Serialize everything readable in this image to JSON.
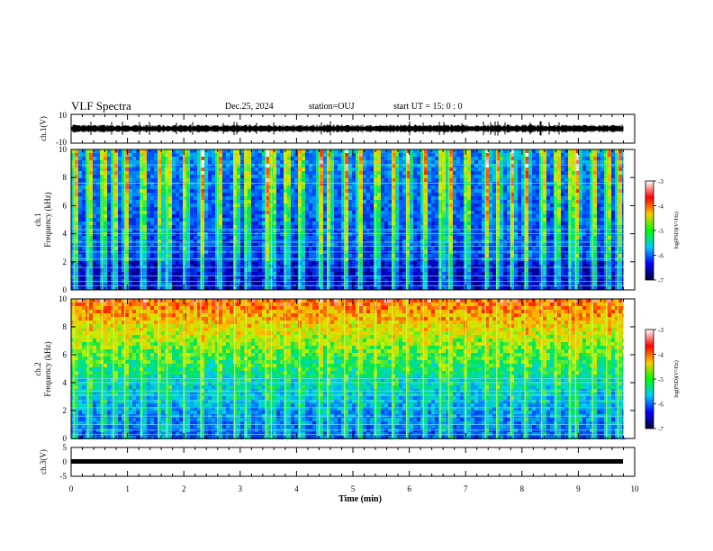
{
  "header": {
    "title": "VLF Spectra",
    "date": "Dec.25, 2024",
    "station": "station=OUJ",
    "start": "start  UT =   15: 0  : 0"
  },
  "panels": {
    "ch1_wave": {
      "ylabel": "ch.1(V)",
      "ylim": [
        -10,
        10
      ],
      "ticks": [
        "10",
        "-10"
      ]
    },
    "ch1_spec": {
      "ylabel_line1": "ch.1",
      "ylabel_line2": "Frequency (kHz)",
      "ticks": [
        "10",
        "8",
        "6",
        "4",
        "2",
        "0"
      ]
    },
    "ch2_spec": {
      "ylabel_line1": "ch.2",
      "ylabel_line2": "Frequency (kHz)",
      "ticks": [
        "10",
        "8",
        "6",
        "4",
        "2",
        "0"
      ]
    },
    "ch3_wave": {
      "ylabel": "ch.3(V)",
      "ylim": [
        -5,
        5
      ],
      "ticks": [
        "5",
        "0",
        "-5"
      ]
    }
  },
  "colorbar": {
    "label": "log(PSD)(V²/Hz)",
    "ticks": [
      "-3",
      "-4",
      "-5",
      "-6",
      "-7"
    ],
    "colors": [
      "#ffffff",
      "#ff0000",
      "#ffcc00",
      "#00ff00",
      "#00ccff",
      "#0000ff",
      "#000033"
    ]
  },
  "xaxis": {
    "label": "Time  (min)",
    "ticks": [
      "0",
      "1",
      "2",
      "3",
      "4",
      "5",
      "6",
      "7",
      "8",
      "9",
      "10"
    ]
  },
  "chart_data": [
    {
      "type": "line",
      "name": "ch.1 waveform",
      "xlabel": "",
      "ylabel": "ch.1(V)",
      "xlim": [
        0,
        10
      ],
      "ylim": [
        -10,
        10
      ],
      "note_level_V": 0,
      "x_end_min": 9.8
    },
    {
      "type": "heatmap",
      "name": "ch.1 spectrogram",
      "xlabel": "Time (min)",
      "ylabel": "Frequency (kHz)",
      "xlim": [
        0,
        10
      ],
      "ylim": [
        0,
        10
      ],
      "zlabel": "log(PSD)(V²/Hz)",
      "zlim": [
        -7,
        -3
      ],
      "vertical_bursts_min": [
        0.05,
        0.3,
        0.55,
        0.75,
        0.95,
        1.25,
        1.55,
        1.7,
        2.0,
        2.3,
        2.6,
        2.9,
        3.1,
        3.45,
        3.55,
        3.8,
        4.05,
        4.4,
        4.55,
        4.85,
        5.1,
        5.4,
        5.7,
        5.95,
        6.25,
        6.55,
        6.7,
        7.0,
        7.35,
        7.55,
        7.8,
        8.05,
        8.35,
        8.6,
        8.85,
        8.95,
        9.25,
        9.5,
        9.7
      ],
      "horizontal_lines_kHz": [
        0.3,
        0.6,
        1.0,
        1.6,
        2.2,
        2.7,
        3.1,
        3.4,
        4.0,
        4.3,
        7.6,
        8.9
      ]
    },
    {
      "type": "heatmap",
      "name": "ch.2 spectrogram",
      "xlabel": "Time (min)",
      "ylabel": "Frequency (kHz)",
      "xlim": [
        0,
        10
      ],
      "ylim": [
        0,
        10
      ],
      "zlabel": "log(PSD)(V²/Hz)",
      "zlim": [
        -7,
        -3
      ],
      "vertical_bursts_min": [
        0.05,
        0.3,
        0.55,
        0.75,
        0.95,
        1.25,
        1.55,
        1.7,
        2.0,
        2.3,
        2.6,
        2.9,
        3.1,
        3.45,
        3.55,
        3.8,
        4.05,
        4.4,
        4.55,
        4.85,
        5.1,
        5.4,
        5.7,
        5.95,
        6.25,
        6.55,
        6.7,
        7.0,
        7.35,
        7.55,
        7.8,
        8.05,
        8.35,
        8.6,
        8.85,
        8.95,
        9.25,
        9.5,
        9.7
      ],
      "horizontal_lines_kHz": [
        0.3,
        0.6,
        1.0,
        1.6,
        2.2,
        2.7,
        3.1,
        3.4,
        4.0,
        4.3
      ]
    },
    {
      "type": "line",
      "name": "ch.3 waveform",
      "xlabel": "Time (min)",
      "ylabel": "ch.3(V)",
      "xlim": [
        0,
        10
      ],
      "ylim": [
        -5,
        5
      ],
      "level_V": 0,
      "x_end_min": 9.8
    }
  ]
}
